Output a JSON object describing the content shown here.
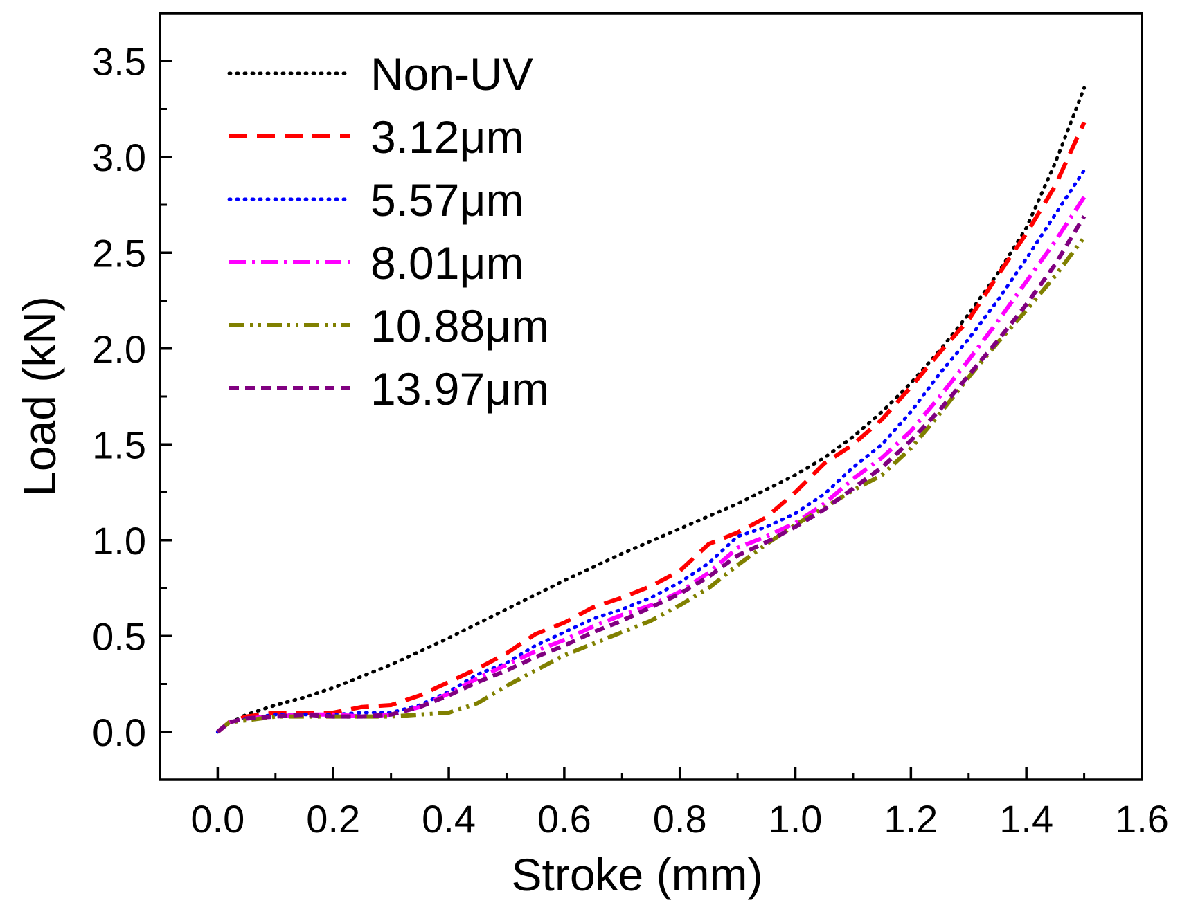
{
  "chart_data": {
    "type": "line",
    "title": "",
    "xlabel": "Stroke (mm)",
    "ylabel": "Load (kN)",
    "xlim": [
      -0.1,
      1.6
    ],
    "ylim": [
      -0.25,
      3.75
    ],
    "xticks": [
      0.0,
      0.2,
      0.4,
      0.6,
      0.8,
      1.0,
      1.2,
      1.4,
      1.6
    ],
    "yticks": [
      0.0,
      0.5,
      1.0,
      1.5,
      2.0,
      2.5,
      3.0,
      3.5
    ],
    "xtick_labels": [
      "0.0",
      "0.2",
      "0.4",
      "0.6",
      "0.8",
      "1.0",
      "1.2",
      "1.4",
      "1.6"
    ],
    "ytick_labels": [
      "0.0",
      "0.5",
      "1.0",
      "1.5",
      "2.0",
      "2.5",
      "3.0",
      "3.5"
    ],
    "grid": false,
    "legend_position": "top-left",
    "series": [
      {
        "name": "Non-UV",
        "color": "#000000",
        "style": "dotted",
        "x": [
          0.0,
          0.02,
          0.05,
          0.1,
          0.15,
          0.2,
          0.3,
          0.4,
          0.5,
          0.6,
          0.7,
          0.8,
          0.9,
          1.0,
          1.05,
          1.1,
          1.15,
          1.2,
          1.25,
          1.3,
          1.35,
          1.4,
          1.45,
          1.5
        ],
        "y": [
          0.0,
          0.05,
          0.09,
          0.14,
          0.18,
          0.23,
          0.35,
          0.49,
          0.64,
          0.79,
          0.93,
          1.06,
          1.19,
          1.34,
          1.43,
          1.54,
          1.67,
          1.82,
          1.99,
          2.18,
          2.39,
          2.63,
          2.97,
          3.36
        ]
      },
      {
        "name": "3.12μm",
        "color": "#ff0000",
        "style": "dashed",
        "x": [
          0.0,
          0.02,
          0.05,
          0.1,
          0.15,
          0.2,
          0.25,
          0.3,
          0.35,
          0.4,
          0.45,
          0.5,
          0.55,
          0.6,
          0.65,
          0.7,
          0.75,
          0.8,
          0.85,
          0.9,
          0.95,
          1.0,
          1.05,
          1.1,
          1.15,
          1.2,
          1.25,
          1.3,
          1.35,
          1.4,
          1.45,
          1.5
        ],
        "y": [
          0.0,
          0.05,
          0.08,
          0.1,
          0.1,
          0.1,
          0.13,
          0.14,
          0.19,
          0.26,
          0.33,
          0.41,
          0.51,
          0.57,
          0.65,
          0.7,
          0.76,
          0.84,
          0.98,
          1.04,
          1.12,
          1.25,
          1.4,
          1.5,
          1.63,
          1.8,
          1.98,
          2.15,
          2.38,
          2.6,
          2.85,
          3.18
        ]
      },
      {
        "name": "5.57μm",
        "color": "#0000ff",
        "style": "dotted",
        "x": [
          0.0,
          0.02,
          0.05,
          0.1,
          0.15,
          0.2,
          0.25,
          0.3,
          0.35,
          0.4,
          0.45,
          0.5,
          0.55,
          0.6,
          0.65,
          0.7,
          0.75,
          0.8,
          0.85,
          0.9,
          0.95,
          1.0,
          1.05,
          1.1,
          1.15,
          1.2,
          1.25,
          1.3,
          1.35,
          1.4,
          1.45,
          1.5
        ],
        "y": [
          0.0,
          0.05,
          0.07,
          0.09,
          0.09,
          0.09,
          0.1,
          0.1,
          0.14,
          0.21,
          0.3,
          0.36,
          0.45,
          0.52,
          0.59,
          0.64,
          0.7,
          0.78,
          0.88,
          1.02,
          1.07,
          1.14,
          1.24,
          1.38,
          1.5,
          1.67,
          1.87,
          2.05,
          2.25,
          2.47,
          2.7,
          2.93
        ]
      },
      {
        "name": "8.01μm",
        "color": "#ff00ff",
        "style": "dash-dot",
        "x": [
          0.0,
          0.02,
          0.05,
          0.1,
          0.15,
          0.2,
          0.25,
          0.3,
          0.35,
          0.4,
          0.45,
          0.5,
          0.55,
          0.6,
          0.65,
          0.7,
          0.75,
          0.8,
          0.85,
          0.9,
          0.95,
          1.0,
          1.05,
          1.1,
          1.15,
          1.2,
          1.25,
          1.3,
          1.35,
          1.4,
          1.45,
          1.5
        ],
        "y": [
          0.0,
          0.05,
          0.07,
          0.08,
          0.09,
          0.09,
          0.08,
          0.09,
          0.13,
          0.2,
          0.28,
          0.35,
          0.42,
          0.48,
          0.55,
          0.61,
          0.66,
          0.73,
          0.83,
          0.96,
          1.02,
          1.09,
          1.19,
          1.32,
          1.43,
          1.57,
          1.75,
          1.94,
          2.14,
          2.35,
          2.56,
          2.79
        ]
      },
      {
        "name": "10.88μm",
        "color": "#808000",
        "style": "dash-dot-dot",
        "x": [
          0.0,
          0.02,
          0.05,
          0.1,
          0.15,
          0.2,
          0.25,
          0.3,
          0.35,
          0.4,
          0.45,
          0.5,
          0.55,
          0.6,
          0.65,
          0.7,
          0.75,
          0.8,
          0.85,
          0.9,
          0.95,
          1.0,
          1.05,
          1.1,
          1.15,
          1.2,
          1.25,
          1.3,
          1.35,
          1.4,
          1.45,
          1.5
        ],
        "y": [
          0.0,
          0.05,
          0.06,
          0.08,
          0.08,
          0.08,
          0.08,
          0.08,
          0.09,
          0.1,
          0.15,
          0.24,
          0.32,
          0.4,
          0.46,
          0.52,
          0.58,
          0.66,
          0.75,
          0.87,
          0.98,
          1.08,
          1.17,
          1.26,
          1.34,
          1.48,
          1.66,
          1.85,
          2.03,
          2.2,
          2.38,
          2.58
        ]
      },
      {
        "name": "13.97μm",
        "color": "#800080",
        "style": "short-dash",
        "x": [
          0.0,
          0.02,
          0.05,
          0.1,
          0.15,
          0.2,
          0.25,
          0.3,
          0.35,
          0.4,
          0.45,
          0.5,
          0.55,
          0.6,
          0.65,
          0.7,
          0.75,
          0.8,
          0.85,
          0.9,
          0.95,
          1.0,
          1.05,
          1.1,
          1.15,
          1.2,
          1.25,
          1.3,
          1.35,
          1.4,
          1.45,
          1.5
        ],
        "y": [
          0.0,
          0.05,
          0.07,
          0.08,
          0.09,
          0.08,
          0.08,
          0.09,
          0.13,
          0.19,
          0.26,
          0.32,
          0.39,
          0.45,
          0.52,
          0.58,
          0.65,
          0.72,
          0.81,
          0.92,
          0.99,
          1.07,
          1.16,
          1.27,
          1.38,
          1.52,
          1.68,
          1.86,
          2.04,
          2.23,
          2.44,
          2.69
        ]
      }
    ]
  }
}
